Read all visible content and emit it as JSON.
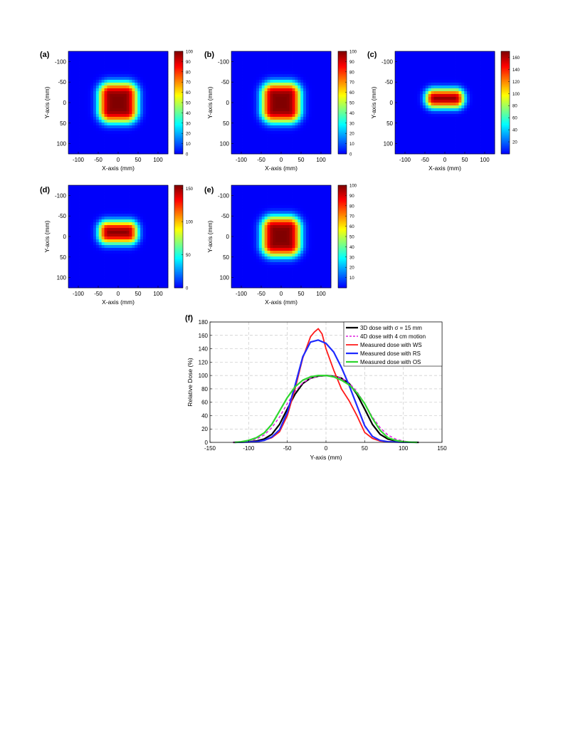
{
  "chart_data": [
    {
      "panel": "(a)",
      "type": "heatmap",
      "xlabel": "X-axis (mm)",
      "ylabel": "Y-axis (mm)",
      "xlim": [
        -125,
        125
      ],
      "ylim": [
        -125,
        125
      ],
      "y_direction": "down",
      "xticks": [
        -100,
        -50,
        0,
        50,
        100
      ],
      "yticks": [
        -100,
        -50,
        0,
        50,
        100
      ],
      "colorbar": {
        "min": 0,
        "max": 100,
        "ticks": [
          0,
          10,
          20,
          30,
          40,
          50,
          60,
          70,
          80,
          90,
          100
        ]
      },
      "field": {
        "shape": "rounded-square",
        "center": [
          0,
          0
        ],
        "half_width_x": 45,
        "half_width_y": 45,
        "corner_radius": 25,
        "edge_sigma": 12,
        "peak": 100
      }
    },
    {
      "panel": "(b)",
      "type": "heatmap",
      "xlabel": "X-axis (mm)",
      "ylabel": "Y-axis (mm)",
      "xlim": [
        -125,
        125
      ],
      "ylim": [
        -125,
        125
      ],
      "y_direction": "down",
      "xticks": [
        -100,
        -50,
        0,
        50,
        100
      ],
      "yticks": [
        -100,
        -50,
        0,
        50,
        100
      ],
      "colorbar": {
        "min": 0,
        "max": 100,
        "ticks": [
          0,
          10,
          20,
          30,
          40,
          50,
          60,
          70,
          80,
          90,
          100
        ]
      },
      "field": {
        "shape": "rounded-square",
        "center": [
          0,
          0
        ],
        "half_width_x": 45,
        "half_width_y": 45,
        "corner_radius": 25,
        "edge_sigma": 12,
        "peak": 100
      }
    },
    {
      "panel": "(c)",
      "type": "heatmap",
      "xlabel": "X-axis (mm)",
      "ylabel": "Y-axis (mm)",
      "xlim": [
        -125,
        125
      ],
      "ylim": [
        -125,
        125
      ],
      "y_direction": "down",
      "xticks": [
        -100,
        -50,
        0,
        50,
        100
      ],
      "yticks": [
        -100,
        -50,
        0,
        50,
        100
      ],
      "colorbar": {
        "min": 0,
        "max": 170,
        "ticks": [
          20,
          40,
          60,
          80,
          100,
          120,
          140,
          160
        ]
      },
      "field": {
        "shape": "rounded-rectangle",
        "center": [
          0,
          -10
        ],
        "half_width_x": 45,
        "half_width_y": 20,
        "corner_radius": 18,
        "edge_sigma": 10,
        "peak": 170
      }
    },
    {
      "panel": "(d)",
      "type": "heatmap",
      "xlabel": "X-axis (mm)",
      "ylabel": "Y-axis (mm)",
      "xlim": [
        -125,
        125
      ],
      "ylim": [
        -125,
        125
      ],
      "y_direction": "down",
      "xticks": [
        -100,
        -50,
        0,
        50,
        100
      ],
      "yticks": [
        -100,
        -50,
        0,
        50,
        100
      ],
      "colorbar": {
        "min": 0,
        "max": 155,
        "ticks": [
          0,
          50,
          100,
          150
        ]
      },
      "field": {
        "shape": "rounded-rectangle",
        "center": [
          0,
          -10
        ],
        "half_width_x": 45,
        "half_width_y": 24,
        "corner_radius": 18,
        "edge_sigma": 11,
        "peak": 155
      }
    },
    {
      "panel": "(e)",
      "type": "heatmap",
      "xlabel": "X-axis (mm)",
      "ylabel": "Y-axis (mm)",
      "xlim": [
        -125,
        125
      ],
      "ylim": [
        -125,
        125
      ],
      "y_direction": "down",
      "xticks": [
        -100,
        -50,
        0,
        50,
        100
      ],
      "yticks": [
        -100,
        -50,
        0,
        50,
        100
      ],
      "colorbar": {
        "min": 0,
        "max": 100,
        "ticks": [
          10,
          20,
          30,
          40,
          50,
          60,
          70,
          80,
          90,
          100
        ]
      },
      "field": {
        "shape": "rounded-square",
        "center": [
          0,
          0
        ],
        "half_width_x": 45,
        "half_width_y": 45,
        "corner_radius": 25,
        "edge_sigma": 12,
        "peak": 100
      }
    },
    {
      "panel": "(f)",
      "type": "line",
      "xlabel": "Y-axis (mm)",
      "ylabel": "Relative Dose (%)",
      "xlim": [
        -150,
        150
      ],
      "ylim": [
        0,
        180
      ],
      "xticks": [
        -150,
        -100,
        -50,
        0,
        50,
        100,
        150
      ],
      "yticks": [
        0,
        20,
        40,
        60,
        80,
        100,
        120,
        140,
        160,
        180
      ],
      "grid": true,
      "legend_position": "top-right",
      "series": [
        {
          "name": "3D dose with σ = 15 mm",
          "color": "#000000",
          "dashed": false,
          "width": 2.2,
          "x": [
            -120,
            -110,
            -100,
            -90,
            -80,
            -70,
            -60,
            -50,
            -40,
            -30,
            -20,
            -10,
            0,
            10,
            20,
            30,
            40,
            50,
            60,
            70,
            80,
            90,
            100,
            110,
            120
          ],
          "y": [
            0,
            0.2,
            1,
            2,
            5,
            12,
            27,
            50,
            72,
            88,
            96,
            99,
            100,
            99,
            96,
            88,
            72,
            50,
            27,
            12,
            5,
            2,
            1,
            0.2,
            0
          ]
        },
        {
          "name": "4D dose with 4 cm motion",
          "color": "#e020e0",
          "dashed": true,
          "width": 1.5,
          "x": [
            -120,
            -110,
            -100,
            -90,
            -80,
            -70,
            -60,
            -50,
            -40,
            -30,
            -20,
            -10,
            0,
            10,
            20,
            30,
            40,
            50,
            60,
            70,
            80,
            90,
            100,
            110,
            120
          ],
          "y": [
            0,
            0.4,
            2,
            5,
            11,
            22,
            38,
            58,
            76,
            89,
            96,
            99,
            100,
            99,
            96,
            89,
            76,
            58,
            38,
            22,
            11,
            5,
            2,
            0.4,
            0
          ]
        },
        {
          "name": "Measured dose with WS",
          "color": "#ff1a1a",
          "dashed": false,
          "width": 1.8,
          "x": [
            -118,
            -100,
            -90,
            -80,
            -70,
            -60,
            -50,
            -40,
            -30,
            -20,
            -15,
            -10,
            -5,
            0,
            10,
            20,
            30,
            40,
            50,
            60,
            70,
            80,
            90,
            100,
            118
          ],
          "y": [
            0,
            0.5,
            1,
            3,
            7,
            16,
            40,
            80,
            126,
            158,
            165,
            170,
            162,
            140,
            108,
            80,
            62,
            40,
            15,
            6,
            2,
            1,
            0.5,
            0.2,
            0
          ]
        },
        {
          "name": "Measured dose with RS",
          "color": "#1f2bff",
          "dashed": false,
          "width": 2.2,
          "x": [
            -118,
            -100,
            -90,
            -80,
            -70,
            -60,
            -50,
            -40,
            -30,
            -20,
            -10,
            0,
            10,
            20,
            30,
            40,
            50,
            60,
            70,
            80,
            90,
            100,
            118
          ],
          "y": [
            0,
            0.5,
            1,
            3,
            8,
            19,
            45,
            85,
            128,
            150,
            153,
            148,
            135,
            112,
            85,
            55,
            25,
            9,
            3,
            1,
            0.5,
            0.2,
            0
          ]
        },
        {
          "name": "Measured dose with OS",
          "color": "#2fd62f",
          "dashed": false,
          "width": 2.2,
          "x": [
            -118,
            -110,
            -100,
            -90,
            -80,
            -70,
            -60,
            -50,
            -40,
            -30,
            -20,
            -10,
            0,
            10,
            20,
            30,
            40,
            50,
            60,
            70,
            80,
            90,
            100,
            110,
            118
          ],
          "y": [
            0,
            0.8,
            3,
            7,
            14,
            27,
            47,
            67,
            83,
            93,
            98,
            100,
            100,
            98,
            93,
            86,
            74,
            58,
            36,
            18,
            7,
            3,
            1,
            0.3,
            0
          ]
        }
      ]
    }
  ]
}
